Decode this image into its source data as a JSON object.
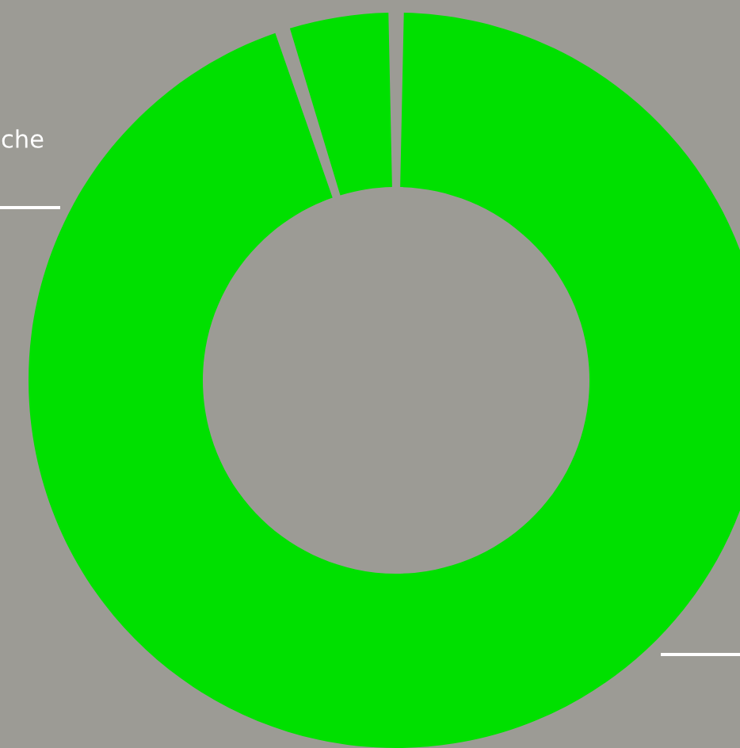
{
  "chart_data": {
    "type": "donut",
    "categories": [
      null,
      "che"
    ],
    "values": [
      5,
      95
    ],
    "colors": [
      "#00e000",
      "#00e000"
    ]
  }
}
